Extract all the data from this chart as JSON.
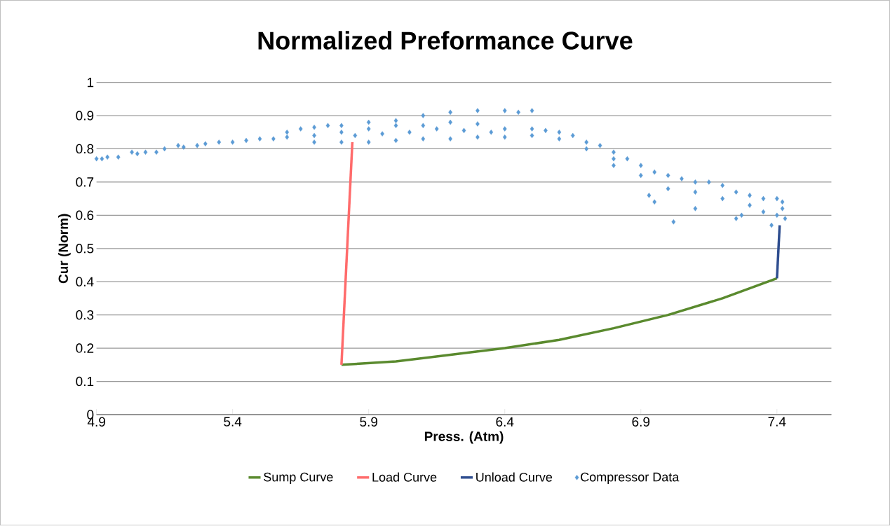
{
  "chart_data": {
    "type": "line",
    "title": "Normalized Preformance Curve",
    "xlabel": "Press. (Atm)",
    "ylabel": "Cur (Norm)",
    "xlim": [
      4.9,
      7.6
    ],
    "xticks": [
      4.9,
      5.4,
      5.9,
      6.4,
      6.9,
      7.4
    ],
    "ylim": [
      0,
      1
    ],
    "yticks": [
      0,
      0.1,
      0.2,
      0.3,
      0.4,
      0.5,
      0.6,
      0.7,
      0.8,
      0.9,
      1
    ],
    "grid": "y",
    "legend": "bottom",
    "series": [
      {
        "name": "Sump Curve",
        "color": "#5a8a2e",
        "x": [
          5.8,
          6.0,
          6.2,
          6.4,
          6.6,
          6.8,
          6.9,
          7.0,
          7.1,
          7.2,
          7.3,
          7.4
        ],
        "values": [
          0.15,
          0.16,
          0.18,
          0.2,
          0.225,
          0.26,
          0.28,
          0.3,
          0.325,
          0.35,
          0.38,
          0.41
        ]
      },
      {
        "name": "Load Curve",
        "color": "#ff6b6b",
        "x": [
          5.8,
          5.84
        ],
        "values": [
          0.15,
          0.82
        ]
      },
      {
        "name": "Unload Curve",
        "color": "#2e4d8f",
        "x": [
          7.4,
          7.41
        ],
        "values": [
          0.41,
          0.57
        ]
      },
      {
        "name": "Compressor Data",
        "type": "scatter",
        "marker": "diamond",
        "color": "#5b9bd5",
        "x": [
          4.9,
          4.92,
          4.94,
          4.98,
          5.03,
          5.05,
          5.08,
          5.12,
          5.15,
          5.2,
          5.22,
          5.27,
          5.3,
          5.35,
          5.4,
          5.45,
          5.5,
          5.55,
          5.6,
          5.65,
          5.7,
          5.75,
          5.6,
          5.7,
          5.8,
          5.9,
          6.0,
          6.1,
          6.2,
          6.3,
          6.4,
          6.45,
          6.5,
          5.7,
          5.8,
          5.9,
          6.0,
          6.1,
          6.2,
          6.3,
          6.4,
          5.8,
          5.9,
          6.0,
          6.1,
          6.2,
          6.3,
          6.4,
          5.85,
          5.95,
          6.05,
          6.15,
          6.25,
          6.35,
          6.5,
          6.55,
          6.6,
          6.65,
          6.7,
          6.75,
          6.8,
          6.85,
          6.9,
          6.95,
          7.0,
          7.05,
          7.1,
          7.15,
          7.2,
          7.25,
          7.3,
          7.35,
          7.4,
          7.42,
          6.5,
          6.6,
          6.7,
          6.8,
          6.9,
          7.0,
          7.1,
          7.2,
          7.3,
          7.35,
          7.4,
          7.42,
          7.38,
          7.43,
          6.93,
          6.95,
          7.02,
          7.1,
          7.25,
          6.8,
          7.27
        ],
        "values": [
          0.77,
          0.77,
          0.775,
          0.775,
          0.79,
          0.785,
          0.79,
          0.79,
          0.8,
          0.81,
          0.805,
          0.81,
          0.815,
          0.82,
          0.82,
          0.825,
          0.83,
          0.83,
          0.85,
          0.86,
          0.865,
          0.87,
          0.835,
          0.82,
          0.82,
          0.82,
          0.825,
          0.83,
          0.83,
          0.835,
          0.835,
          0.91,
          0.915,
          0.84,
          0.87,
          0.88,
          0.885,
          0.9,
          0.91,
          0.915,
          0.915,
          0.85,
          0.86,
          0.87,
          0.87,
          0.88,
          0.875,
          0.86,
          0.84,
          0.845,
          0.85,
          0.86,
          0.855,
          0.85,
          0.86,
          0.855,
          0.85,
          0.84,
          0.82,
          0.81,
          0.79,
          0.77,
          0.75,
          0.73,
          0.72,
          0.71,
          0.7,
          0.7,
          0.69,
          0.67,
          0.66,
          0.65,
          0.65,
          0.64,
          0.84,
          0.83,
          0.8,
          0.77,
          0.72,
          0.68,
          0.67,
          0.65,
          0.63,
          0.61,
          0.6,
          0.62,
          0.57,
          0.59,
          0.66,
          0.64,
          0.58,
          0.62,
          0.59,
          0.75,
          0.6
        ]
      }
    ]
  }
}
